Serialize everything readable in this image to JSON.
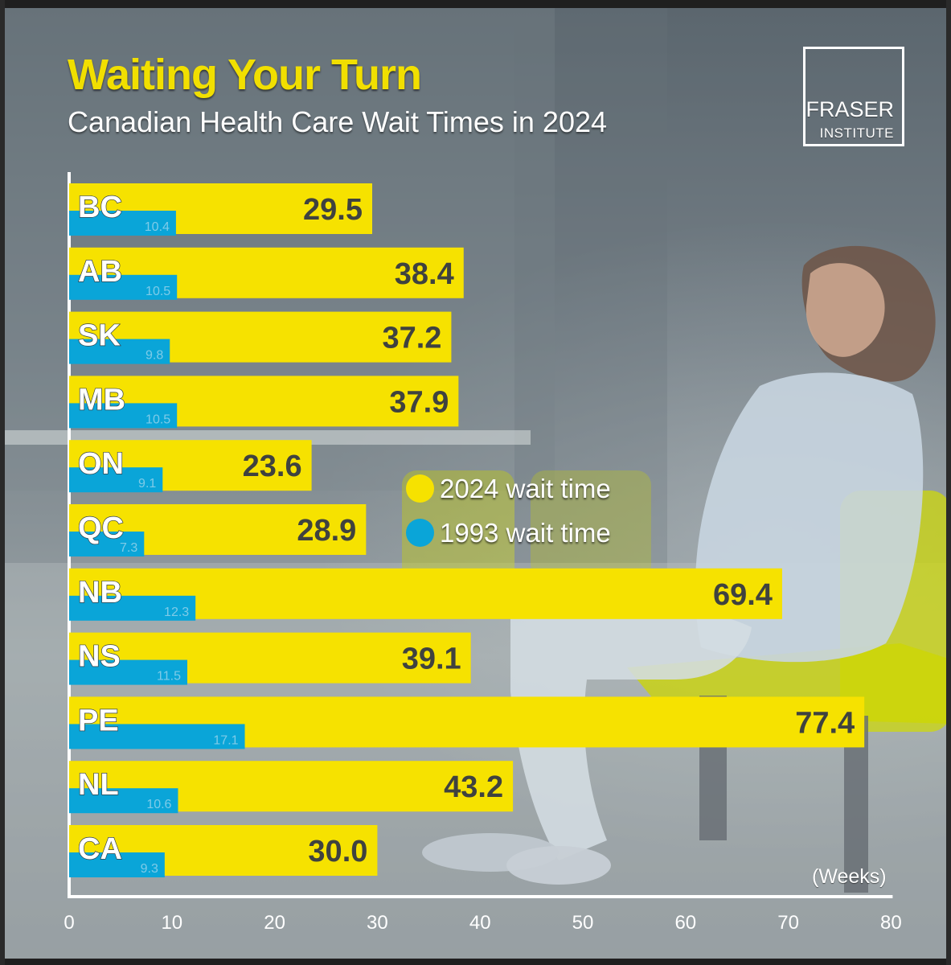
{
  "header": {
    "title": "Waiting Your Turn",
    "subtitle": "Canadian Health Care Wait Times in 2024"
  },
  "logo": {
    "line1": "FRASER",
    "line2": "INSTITUTE"
  },
  "legend": {
    "item_2024": "2024 wait time",
    "item_1993": "1993 wait time"
  },
  "colors": {
    "yellow": "#f6e200",
    "blue": "#0aa5d8",
    "title_yellow": "#f1df00",
    "axis": "#ffffff"
  },
  "chart_data": {
    "type": "bar",
    "orientation": "horizontal",
    "categories": [
      "BC",
      "AB",
      "SK",
      "MB",
      "ON",
      "QC",
      "NB",
      "NS",
      "PE",
      "NL",
      "CA"
    ],
    "series": [
      {
        "name": "2024 wait time",
        "values": [
          29.5,
          38.4,
          37.2,
          37.9,
          23.6,
          28.9,
          69.4,
          39.1,
          77.4,
          43.2,
          30.0
        ],
        "labels": [
          "29.5",
          "38.4",
          "37.2",
          "37.9",
          "23.6",
          "28.9",
          "69.4",
          "39.1",
          "77.4",
          "43.2",
          "30.0"
        ]
      },
      {
        "name": "1993 wait time",
        "values": [
          10.4,
          10.5,
          9.8,
          10.5,
          9.1,
          7.3,
          12.3,
          11.5,
          17.1,
          10.6,
          9.3
        ],
        "labels": [
          "10.4",
          "10.5",
          "9.8",
          "10.5",
          "9.1",
          "7.3",
          "12.3",
          "11.5",
          "17.1",
          "10.6",
          "9.3"
        ]
      }
    ],
    "title": "Waiting Your Turn",
    "subtitle": "Canadian Health Care Wait Times in 2024",
    "xlabel": "(Weeks)",
    "ylabel": "",
    "xlim": [
      0,
      80
    ],
    "xticks": [
      0,
      10,
      20,
      30,
      40,
      50,
      60,
      70,
      80
    ],
    "xtick_labels": [
      "0",
      "10",
      "20",
      "30",
      "40",
      "50",
      "60",
      "70",
      "80"
    ],
    "grid": false,
    "legend_position": "center-right"
  }
}
